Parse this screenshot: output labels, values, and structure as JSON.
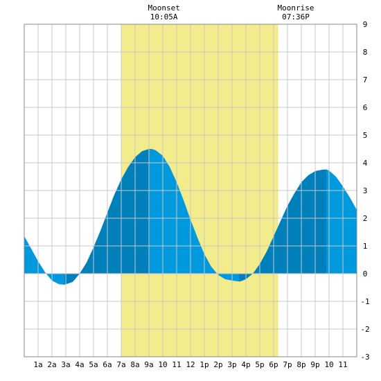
{
  "chart_data": {
    "type": "area",
    "x": [
      "00:00",
      "00:30",
      "01:00",
      "01:30",
      "02:00",
      "02:30",
      "02:54",
      "03:30",
      "04:00",
      "04:30",
      "05:00",
      "05:30",
      "06:00",
      "06:30",
      "07:00",
      "07:30",
      "08:00",
      "08:30",
      "09:00",
      "09:12",
      "09:30",
      "10:00",
      "10:30",
      "11:00",
      "11:30",
      "12:00",
      "12:30",
      "13:00",
      "13:30",
      "14:00",
      "14:30",
      "15:00",
      "15:30",
      "15:36",
      "16:00",
      "16:30",
      "17:00",
      "17:30",
      "18:00",
      "18:30",
      "19:00",
      "19:30",
      "20:00",
      "20:30",
      "21:00",
      "21:30",
      "21:48",
      "22:00",
      "22:30",
      "23:00",
      "23:30",
      "24:00"
    ],
    "series": [
      {
        "values": [
          1.35,
          0.9,
          0.45,
          0.05,
          -0.25,
          -0.38,
          -0.4,
          -0.3,
          0.0,
          0.4,
          0.95,
          1.55,
          2.2,
          2.85,
          3.4,
          3.85,
          4.2,
          4.42,
          4.5,
          4.5,
          4.45,
          4.25,
          3.85,
          3.3,
          2.65,
          1.95,
          1.3,
          0.7,
          0.25,
          -0.05,
          -0.2,
          -0.25,
          -0.28,
          -0.28,
          -0.2,
          0.0,
          0.35,
          0.8,
          1.35,
          1.9,
          2.45,
          2.9,
          3.3,
          3.55,
          3.7,
          3.75,
          3.76,
          3.72,
          3.5,
          3.15,
          2.75,
          2.3
        ],
        "color": "#0099dd",
        "rising_color": "#0080bb"
      }
    ],
    "xlim": [
      "00:00",
      "24:00"
    ],
    "ylim": [
      -3,
      9
    ],
    "y_ticks": [
      "-3",
      "-2",
      "-1",
      "0",
      "1",
      "2",
      "3",
      "4",
      "5",
      "6",
      "7",
      "8",
      "9"
    ],
    "x_ticks": [
      "1a",
      "2a",
      "3a",
      "4a",
      "5a",
      "6a",
      "7a",
      "8a",
      "9a",
      "10",
      "11",
      "12",
      "1p",
      "2p",
      "3p",
      "4p",
      "5p",
      "6p",
      "7p",
      "8p",
      "9p",
      "10",
      "11"
    ],
    "shaded_band": {
      "start": "07:00",
      "end": "18:20",
      "color": "#f2ec8c"
    },
    "annotations": [
      {
        "name": "moonset",
        "label": "Moonset",
        "time": "10:05A",
        "at": "10:05"
      },
      {
        "name": "moonrise",
        "label": "Moonrise",
        "time": "07:36P",
        "at": "19:36"
      }
    ],
    "title": "",
    "xlabel": "",
    "ylabel": "",
    "grid": true,
    "y_axis_side": "right"
  }
}
